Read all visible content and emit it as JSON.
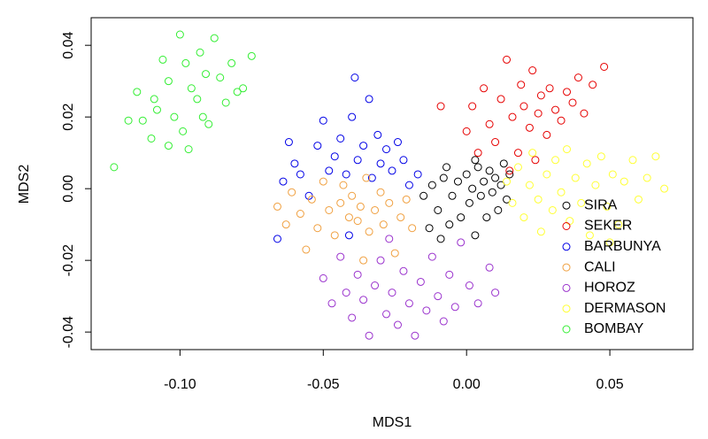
{
  "chart_data": {
    "type": "scatter",
    "x_label": "MDS1",
    "y_label": "MDS2",
    "xlim": [
      -0.131,
      0.079
    ],
    "ylim": [
      -0.0449,
      0.0477
    ],
    "xticks": [
      {
        "value": -0.1,
        "label": "-0.10"
      },
      {
        "value": -0.05,
        "label": "-0.05"
      },
      {
        "value": 0,
        "label": "0.00"
      },
      {
        "value": 0.05,
        "label": "0.05"
      }
    ],
    "yticks": [
      {
        "value": -0.04,
        "label": "-0.04"
      },
      {
        "value": -0.02,
        "label": "-0.02"
      },
      {
        "value": 0,
        "label": "0.00"
      },
      {
        "value": 0.02,
        "label": "0.02"
      },
      {
        "value": 0.04,
        "label": "0.04"
      }
    ],
    "legend_position": "bottomright",
    "series": [
      {
        "name": "SIRA",
        "color": "#000000",
        "x": [
          -0.015,
          -0.012,
          -0.01,
          -0.008,
          -0.006,
          -0.005,
          -0.003,
          -0.002,
          0.0,
          0.001,
          0.002,
          0.003,
          0.004,
          0.005,
          0.006,
          0.007,
          0.008,
          0.009,
          0.01,
          0.011,
          0.012,
          0.013,
          0.014,
          -0.013,
          -0.009,
          0.015,
          0.003,
          -0.007
        ],
        "y": [
          -0.002,
          0.001,
          -0.006,
          0.003,
          -0.01,
          -0.002,
          0.002,
          -0.008,
          0.004,
          -0.004,
          0.0,
          -0.013,
          0.006,
          -0.002,
          0.002,
          -0.008,
          0.005,
          -0.001,
          0.003,
          -0.006,
          0.001,
          0.007,
          -0.003,
          -0.011,
          -0.014,
          0.004,
          0.008,
          0.006
        ]
      },
      {
        "name": "SEKER",
        "color": "#e60000",
        "x": [
          0.0,
          0.002,
          0.004,
          0.006,
          0.008,
          0.01,
          0.012,
          0.014,
          0.016,
          0.018,
          0.019,
          0.02,
          0.022,
          0.023,
          0.025,
          0.026,
          0.028,
          0.029,
          0.031,
          0.033,
          0.035,
          0.037,
          0.039,
          0.041,
          0.044,
          0.048,
          -0.009,
          0.024,
          0.015
        ],
        "y": [
          0.016,
          0.023,
          0.01,
          0.028,
          0.018,
          0.013,
          0.025,
          0.036,
          0.02,
          0.01,
          0.029,
          0.023,
          0.017,
          0.033,
          0.021,
          0.026,
          0.015,
          0.028,
          0.022,
          0.019,
          0.027,
          0.024,
          0.031,
          0.021,
          0.029,
          0.034,
          0.023,
          0.008,
          0.005
        ]
      },
      {
        "name": "BARBUNYA",
        "color": "#0000e6",
        "x": [
          -0.066,
          -0.064,
          -0.062,
          -0.06,
          -0.058,
          -0.055,
          -0.052,
          -0.05,
          -0.048,
          -0.046,
          -0.044,
          -0.042,
          -0.04,
          -0.039,
          -0.038,
          -0.036,
          -0.034,
          -0.033,
          -0.031,
          -0.03,
          -0.028,
          -0.026,
          -0.024,
          -0.022,
          -0.02,
          -0.041,
          -0.017
        ],
        "y": [
          -0.014,
          0.002,
          0.013,
          0.007,
          0.004,
          -0.002,
          0.012,
          0.019,
          0.005,
          0.009,
          0.014,
          0.004,
          0.02,
          0.031,
          0.008,
          0.012,
          0.025,
          0.003,
          0.015,
          0.007,
          0.011,
          0.005,
          0.013,
          0.008,
          0.001,
          -0.013,
          0.004
        ]
      },
      {
        "name": "CALI",
        "color": "#f0a040",
        "x": [
          -0.066,
          -0.063,
          -0.061,
          -0.058,
          -0.056,
          -0.054,
          -0.052,
          -0.05,
          -0.048,
          -0.046,
          -0.044,
          -0.043,
          -0.041,
          -0.04,
          -0.038,
          -0.037,
          -0.035,
          -0.034,
          -0.032,
          -0.03,
          -0.029,
          -0.027,
          -0.025,
          -0.023,
          -0.021,
          -0.019,
          -0.036
        ],
        "y": [
          -0.005,
          -0.01,
          -0.001,
          -0.007,
          -0.017,
          -0.003,
          -0.011,
          0.002,
          -0.006,
          -0.013,
          -0.004,
          0.001,
          -0.008,
          -0.002,
          -0.009,
          -0.005,
          0.003,
          -0.012,
          -0.006,
          -0.001,
          -0.01,
          -0.004,
          -0.018,
          -0.008,
          -0.003,
          -0.011,
          -0.02
        ]
      },
      {
        "name": "HOROZ",
        "color": "#9a32cd",
        "x": [
          -0.05,
          -0.047,
          -0.044,
          -0.042,
          -0.04,
          -0.038,
          -0.036,
          -0.034,
          -0.032,
          -0.03,
          -0.028,
          -0.026,
          -0.024,
          -0.022,
          -0.02,
          -0.018,
          -0.016,
          -0.014,
          -0.012,
          -0.01,
          -0.008,
          -0.006,
          -0.004,
          -0.002,
          0.001,
          0.004,
          0.008,
          0.01,
          -0.027
        ],
        "y": [
          -0.025,
          -0.032,
          -0.019,
          -0.029,
          -0.036,
          -0.024,
          -0.031,
          -0.041,
          -0.027,
          -0.02,
          -0.035,
          -0.029,
          -0.038,
          -0.023,
          -0.032,
          -0.041,
          -0.026,
          -0.034,
          -0.019,
          -0.03,
          -0.037,
          -0.024,
          -0.033,
          -0.015,
          -0.027,
          -0.032,
          -0.022,
          -0.029,
          -0.014
        ]
      },
      {
        "name": "DERMASON",
        "color": "#ffff33",
        "x": [
          0.014,
          0.016,
          0.018,
          0.02,
          0.022,
          0.023,
          0.025,
          0.026,
          0.028,
          0.03,
          0.031,
          0.033,
          0.035,
          0.036,
          0.038,
          0.04,
          0.042,
          0.043,
          0.045,
          0.047,
          0.049,
          0.051,
          0.053,
          0.055,
          0.058,
          0.06,
          0.063,
          0.066,
          0.069,
          0.05
        ],
        "y": [
          0.002,
          -0.004,
          0.006,
          -0.008,
          0.001,
          0.01,
          -0.003,
          -0.012,
          0.004,
          -0.006,
          0.008,
          -0.001,
          0.011,
          -0.009,
          0.003,
          -0.004,
          0.007,
          -0.013,
          0.001,
          0.009,
          -0.005,
          0.004,
          -0.01,
          0.002,
          0.008,
          -0.003,
          0.003,
          0.009,
          0.0,
          -0.015
        ]
      },
      {
        "name": "BOMBAY",
        "color": "#33ee33",
        "x": [
          -0.123,
          -0.118,
          -0.115,
          -0.113,
          -0.11,
          -0.108,
          -0.106,
          -0.104,
          -0.102,
          -0.1,
          -0.098,
          -0.097,
          -0.096,
          -0.094,
          -0.093,
          -0.091,
          -0.09,
          -0.088,
          -0.086,
          -0.084,
          -0.082,
          -0.08,
          -0.078,
          -0.075,
          -0.104,
          -0.109,
          -0.099,
          -0.092
        ],
        "y": [
          0.006,
          0.019,
          0.027,
          0.019,
          0.014,
          0.022,
          0.036,
          0.03,
          0.02,
          0.043,
          0.035,
          0.011,
          0.028,
          0.025,
          0.038,
          0.032,
          0.018,
          0.042,
          0.031,
          0.024,
          0.035,
          0.027,
          0.028,
          0.037,
          0.012,
          0.025,
          0.016,
          0.02
        ]
      }
    ]
  }
}
